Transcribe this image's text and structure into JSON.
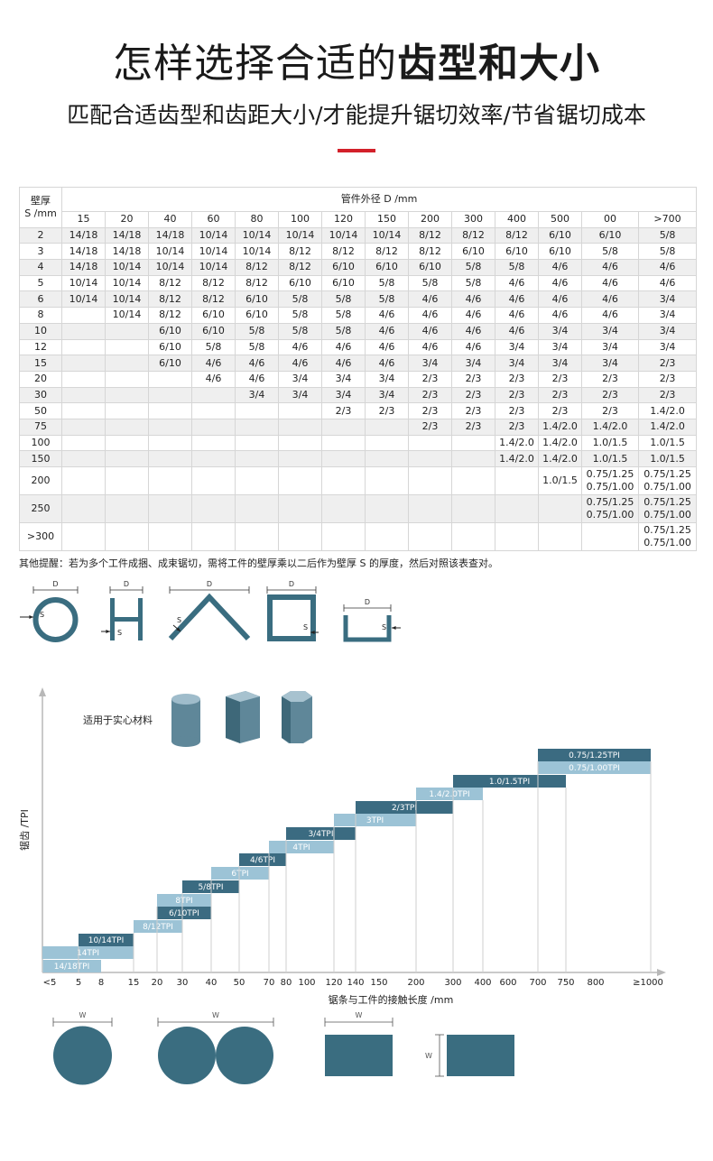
{
  "header": {
    "title_regular": "怎样选择合适的",
    "title_bold": "齿型和大小",
    "subtitle": "匹配合适齿型和齿距大小/才能提升锯切效率/节省锯切成本"
  },
  "spec_table": {
    "row_header_line1": "壁厚",
    "row_header_line2": "S /mm",
    "group_header": "管件外径 D /mm",
    "columns": [
      "15",
      "20",
      "40",
      "60",
      "80",
      "100",
      "120",
      "150",
      "200",
      "300",
      "400",
      "500",
      "00",
      ">700"
    ],
    "rows": [
      {
        "s": "2",
        "cells": [
          "14/18",
          "14/18",
          "14/18",
          "10/14",
          "10/14",
          "10/14",
          "10/14",
          "10/14",
          "8/12",
          "8/12",
          "8/12",
          "6/10",
          "6/10",
          "5/8"
        ]
      },
      {
        "s": "3",
        "cells": [
          "14/18",
          "14/18",
          "10/14",
          "10/14",
          "10/14",
          "8/12",
          "8/12",
          "8/12",
          "8/12",
          "6/10",
          "6/10",
          "6/10",
          "5/8",
          "5/8"
        ]
      },
      {
        "s": "4",
        "cells": [
          "14/18",
          "10/14",
          "10/14",
          "10/14",
          "8/12",
          "8/12",
          "6/10",
          "6/10",
          "6/10",
          "5/8",
          "5/8",
          "4/6",
          "4/6",
          "4/6"
        ]
      },
      {
        "s": "5",
        "cells": [
          "10/14",
          "10/14",
          "8/12",
          "8/12",
          "8/12",
          "6/10",
          "6/10",
          "5/8",
          "5/8",
          "5/8",
          "4/6",
          "4/6",
          "4/6",
          "4/6"
        ]
      },
      {
        "s": "6",
        "cells": [
          "10/14",
          "10/14",
          "8/12",
          "8/12",
          "6/10",
          "5/8",
          "5/8",
          "5/8",
          "4/6",
          "4/6",
          "4/6",
          "4/6",
          "4/6",
          "3/4"
        ]
      },
      {
        "s": "8",
        "cells": [
          "",
          "10/14",
          "8/12",
          "6/10",
          "6/10",
          "5/8",
          "5/8",
          "4/6",
          "4/6",
          "4/6",
          "4/6",
          "4/6",
          "4/6",
          "3/4"
        ]
      },
      {
        "s": "10",
        "cells": [
          "",
          "",
          "6/10",
          "6/10",
          "5/8",
          "5/8",
          "5/8",
          "4/6",
          "4/6",
          "4/6",
          "4/6",
          "3/4",
          "3/4",
          "3/4"
        ]
      },
      {
        "s": "12",
        "cells": [
          "",
          "",
          "6/10",
          "5/8",
          "5/8",
          "4/6",
          "4/6",
          "4/6",
          "4/6",
          "4/6",
          "3/4",
          "3/4",
          "3/4",
          "3/4"
        ]
      },
      {
        "s": "15",
        "cells": [
          "",
          "",
          "6/10",
          "4/6",
          "4/6",
          "4/6",
          "4/6",
          "4/6",
          "3/4",
          "3/4",
          "3/4",
          "3/4",
          "3/4",
          "2/3"
        ]
      },
      {
        "s": "20",
        "cells": [
          "",
          "",
          "",
          "4/6",
          "4/6",
          "3/4",
          "3/4",
          "3/4",
          "2/3",
          "2/3",
          "2/3",
          "2/3",
          "2/3",
          "2/3"
        ]
      },
      {
        "s": "30",
        "cells": [
          "",
          "",
          "",
          "",
          "3/4",
          "3/4",
          "3/4",
          "3/4",
          "2/3",
          "2/3",
          "2/3",
          "2/3",
          "2/3",
          "2/3"
        ]
      },
      {
        "s": "50",
        "cells": [
          "",
          "",
          "",
          "",
          "",
          "",
          "2/3",
          "2/3",
          "2/3",
          "2/3",
          "2/3",
          "2/3",
          "2/3",
          "1.4/2.0"
        ]
      },
      {
        "s": "75",
        "cells": [
          "",
          "",
          "",
          "",
          "",
          "",
          "",
          "",
          "2/3",
          "2/3",
          "2/3",
          "1.4/2.0",
          "1.4/2.0",
          "1.4/2.0"
        ]
      },
      {
        "s": "100",
        "cells": [
          "",
          "",
          "",
          "",
          "",
          "",
          "",
          "",
          "",
          "",
          "1.4/2.0",
          "1.4/2.0",
          "1.0/1.5",
          "1.0/1.5"
        ]
      },
      {
        "s": "150",
        "cells": [
          "",
          "",
          "",
          "",
          "",
          "",
          "",
          "",
          "",
          "",
          "1.4/2.0",
          "1.4/2.0",
          "1.0/1.5",
          "1.0/1.5"
        ]
      },
      {
        "s": "200",
        "tall": true,
        "cells": [
          "",
          "",
          "",
          "",
          "",
          "",
          "",
          "",
          "",
          "",
          "",
          "1.0/1.5",
          "0.75/1.25\n0.75/1.00",
          "0.75/1.25\n0.75/1.00"
        ]
      },
      {
        "s": "250",
        "tall": true,
        "cells": [
          "",
          "",
          "",
          "",
          "",
          "",
          "",
          "",
          "",
          "",
          "",
          "",
          "0.75/1.25\n0.75/1.00",
          "0.75/1.25\n0.75/1.00"
        ]
      },
      {
        "s": ">300",
        "tall": true,
        "cells": [
          "",
          "",
          "",
          "",
          "",
          "",
          "",
          "",
          "",
          "",
          "",
          "",
          "",
          "0.75/1.25\n0.75/1.00"
        ]
      }
    ]
  },
  "note": "其他提醒：若为多个工件成捆、成束锯切，需将工件的壁厚乘以二后作为壁厚 S 的厚度，然后对照该表查对。",
  "profiles": {
    "d_label": "D",
    "s_label": "S"
  },
  "tpi_chart": {
    "y_axis_label": "锯齿 /TPI",
    "x_axis_label": "锯条与工件的接触长度 /mm",
    "solid_material_label": "适用于实心材料",
    "x_ticks": [
      "<5",
      "5",
      "8",
      "15",
      "20",
      "30",
      "40",
      "50",
      "70",
      "80",
      "100",
      "120",
      "140",
      "150",
      "200",
      "300",
      "400",
      "600",
      "700",
      "750",
      "800",
      "≥1000"
    ],
    "w_label": "W",
    "colors": {
      "dark": "#3b6b81",
      "light": "#9cc3d6",
      "axis": "#b8b8b8",
      "shape": "#3a6d80"
    }
  },
  "chart_data": {
    "type": "bar",
    "title": "",
    "xlabel": "锯条与工件的接触长度 /mm",
    "ylabel": "锯齿 /TPI",
    "x_scale": "categorical",
    "series": [
      {
        "label": "14/18TPI",
        "from": "<5",
        "to": "8",
        "shade": "light"
      },
      {
        "label": "14TPI",
        "from": "<5",
        "to": "15",
        "shade": "light"
      },
      {
        "label": "10/14TPI",
        "from": "5",
        "to": "15",
        "shade": "dark"
      },
      {
        "label": "8/12TPI",
        "from": "15",
        "to": "30",
        "shade": "light"
      },
      {
        "label": "6/10TPI",
        "from": "20",
        "to": "40",
        "shade": "dark"
      },
      {
        "label": "8TPI",
        "from": "20",
        "to": "40",
        "shade": "light"
      },
      {
        "label": "5/8TPI",
        "from": "30",
        "to": "50",
        "shade": "dark"
      },
      {
        "label": "6TPI",
        "from": "40",
        "to": "70",
        "shade": "light"
      },
      {
        "label": "4/6TPI",
        "from": "50",
        "to": "80",
        "shade": "dark"
      },
      {
        "label": "4TPI",
        "from": "70",
        "to": "120",
        "shade": "light"
      },
      {
        "label": "3/4TPI",
        "from": "80",
        "to": "140",
        "shade": "dark"
      },
      {
        "label": "3TPI",
        "from": "120",
        "to": "200",
        "shade": "light"
      },
      {
        "label": "2/3TPI",
        "from": "140",
        "to": "300",
        "shade": "dark"
      },
      {
        "label": "1.4/2.0TPI",
        "from": "200",
        "to": "400",
        "shade": "light"
      },
      {
        "label": "1.0/1.5TPI",
        "from": "300",
        "to": "750",
        "shade": "dark"
      },
      {
        "label": "0.75/1.00TPI",
        "from": "700",
        "to": "≥1000",
        "shade": "light"
      },
      {
        "label": "0.75/1.25TPI",
        "from": "700",
        "to": "≥1000",
        "shade": "dark"
      }
    ]
  }
}
